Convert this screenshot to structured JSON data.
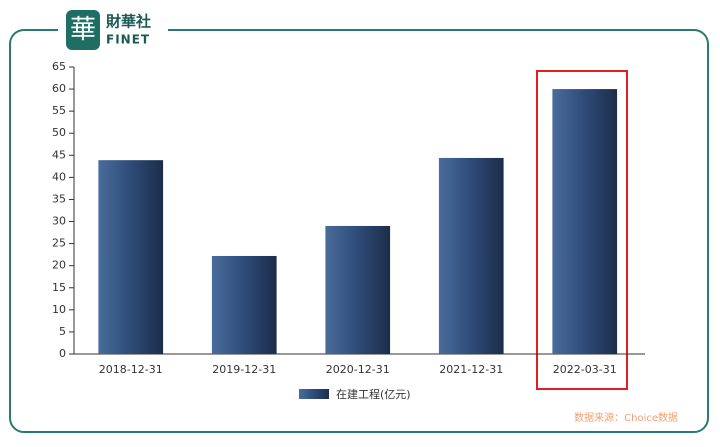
{
  "logo": {
    "mark": "華",
    "name": "財華社",
    "brand": "FINET"
  },
  "chart_data": {
    "type": "bar",
    "categories": [
      "2018-12-31",
      "2019-12-31",
      "2020-12-31",
      "2021-12-31",
      "2022-03-31"
    ],
    "series": [
      {
        "name": "在建工程(亿元)",
        "color": "#2e4b78",
        "values": [
          43.9,
          22.2,
          29.0,
          44.4,
          60.0
        ]
      }
    ],
    "ylim": [
      0,
      65
    ],
    "yticks": [
      0,
      5,
      10,
      15,
      20,
      25,
      30,
      35,
      40,
      45,
      50,
      55,
      60,
      65
    ],
    "source": "数据来源：Choice数据"
  }
}
